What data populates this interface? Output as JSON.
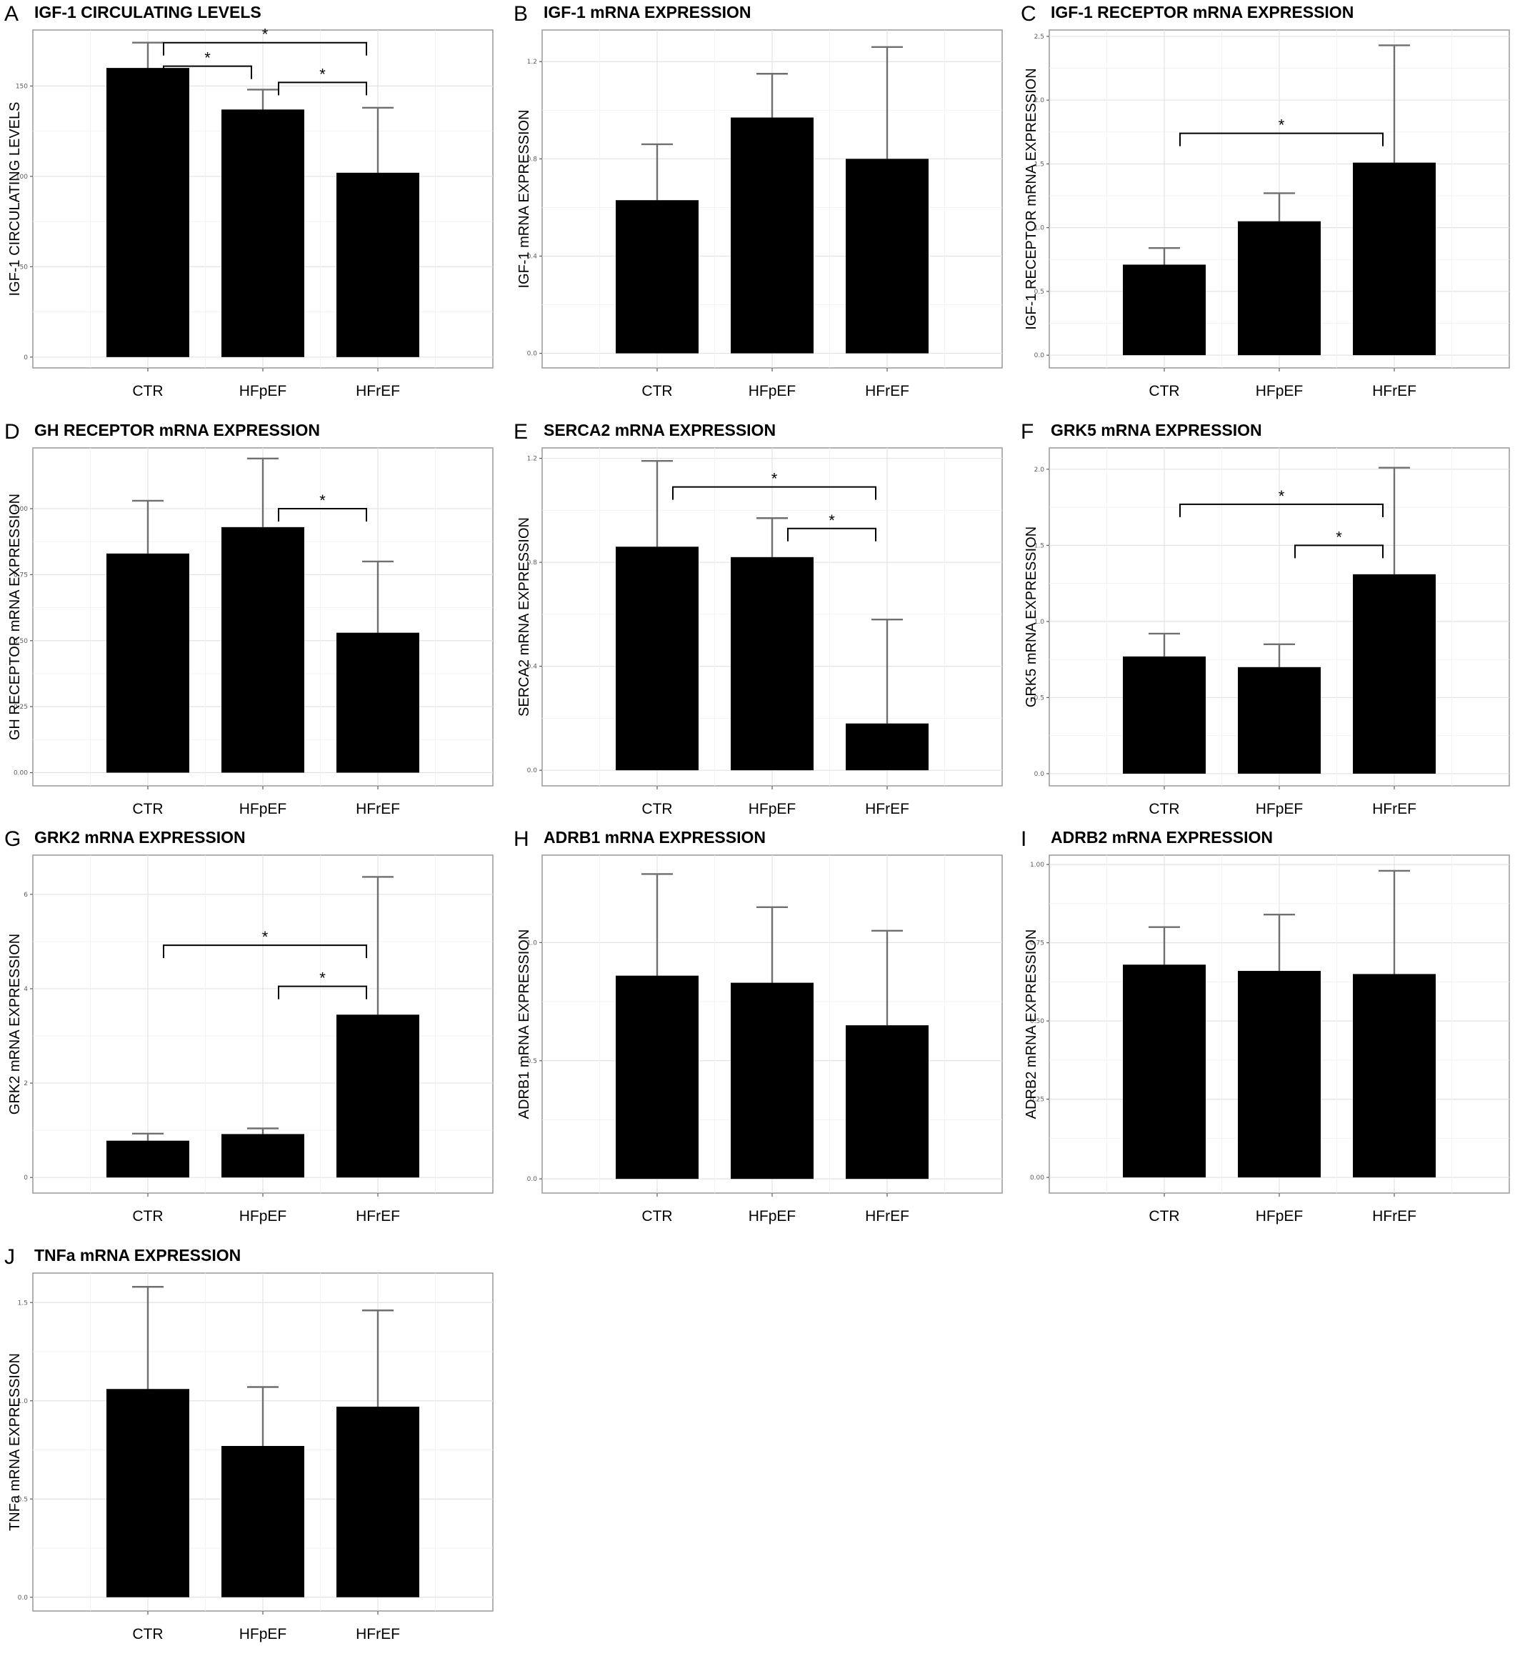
{
  "chart_data": [
    {
      "type": "bar",
      "panel": "A",
      "title": "IGF-1 CIRCULATING LEVELS",
      "ylabel": "IGF-1 CIRCULATING LEVELS",
      "categories": [
        "CTR",
        "HFpEF",
        "HFrEF"
      ],
      "values": [
        160,
        137,
        102
      ],
      "errors": [
        14,
        11,
        36
      ],
      "ylim": [
        -6,
        181
      ],
      "yticks": [
        0,
        50,
        100,
        150
      ],
      "significance": [
        {
          "from": 0,
          "to": 1,
          "level": 161,
          "label": "*"
        },
        {
          "from": 0,
          "to": 2,
          "level": 174,
          "label": "*"
        },
        {
          "from": 1,
          "to": 2,
          "level": 152,
          "label": "*"
        }
      ],
      "grid": true
    },
    {
      "type": "bar",
      "panel": "B",
      "title": "IGF-1 mRNA EXPRESSION",
      "ylabel": "IGF-1 mRNA EXPRESSION",
      "categories": [
        "CTR",
        "HFpEF",
        "HFrEF"
      ],
      "values": [
        0.63,
        0.97,
        0.8
      ],
      "errors": [
        0.23,
        0.18,
        0.46
      ],
      "ylim": [
        -0.06,
        1.33
      ],
      "yticks": [
        0.0,
        0.4,
        0.8,
        1.2
      ],
      "tick_format": 1,
      "significance": [],
      "grid": true
    },
    {
      "type": "bar",
      "panel": "C",
      "title": "IGF-1 RECEPTOR mRNA EXPRESSION",
      "ylabel": "IGF-1 RECEPTOR mRNA EXPRESSION",
      "categories": [
        "CTR",
        "HFpEF",
        "HFrEF"
      ],
      "values": [
        0.71,
        1.05,
        1.51
      ],
      "errors": [
        0.13,
        0.22,
        0.92
      ],
      "ylim": [
        -0.1,
        2.55
      ],
      "yticks": [
        0.0,
        0.5,
        1.0,
        1.5,
        2.0,
        2.5
      ],
      "tick_format": 1,
      "significance": [
        {
          "from": 0,
          "to": 2,
          "level": 1.74,
          "label": "*"
        }
      ],
      "grid": true
    },
    {
      "type": "bar",
      "panel": "D",
      "title": "GH RECEPTOR mRNA EXPRESSION",
      "ylabel": "GH RECEPTOR mRNA EXPRESSION",
      "categories": [
        "CTR",
        "HFpEF",
        "HFrEF"
      ],
      "values": [
        0.83,
        0.93,
        0.53
      ],
      "errors": [
        0.2,
        0.26,
        0.27
      ],
      "ylim": [
        -0.05,
        1.23
      ],
      "yticks": [
        0.0,
        0.25,
        0.5,
        0.75,
        1.0
      ],
      "tick_format": 2,
      "significance": [
        {
          "from": 1,
          "to": 2,
          "level": 1.0,
          "label": "*"
        }
      ],
      "grid": true
    },
    {
      "type": "bar",
      "panel": "E",
      "title": "SERCA2 mRNA EXPRESSION",
      "ylabel": "SERCA2 mRNA EXPRESSION",
      "categories": [
        "CTR",
        "HFpEF",
        "HFrEF"
      ],
      "values": [
        0.86,
        0.82,
        0.18
      ],
      "errors": [
        0.33,
        0.15,
        0.4
      ],
      "ylim": [
        -0.06,
        1.24
      ],
      "yticks": [
        0.0,
        0.4,
        0.8,
        1.2
      ],
      "tick_format": 1,
      "significance": [
        {
          "from": 0,
          "to": 2,
          "level": 1.09,
          "label": "*"
        },
        {
          "from": 1,
          "to": 2,
          "level": 0.93,
          "label": "*"
        }
      ],
      "grid": true
    },
    {
      "type": "bar",
      "panel": "F",
      "title": "GRK5 mRNA EXPRESSION",
      "ylabel": "GRK5 mRNA EXPRESSION",
      "categories": [
        "CTR",
        "HFpEF",
        "HFrEF"
      ],
      "values": [
        0.77,
        0.7,
        1.31
      ],
      "errors": [
        0.15,
        0.15,
        0.7
      ],
      "ylim": [
        -0.08,
        2.14
      ],
      "yticks": [
        0.0,
        0.5,
        1.0,
        1.5,
        2.0
      ],
      "tick_format": 1,
      "significance": [
        {
          "from": 0,
          "to": 2,
          "level": 1.77,
          "label": "*"
        },
        {
          "from": 1,
          "to": 2,
          "level": 1.5,
          "label": "*"
        }
      ],
      "grid": true
    },
    {
      "type": "bar",
      "panel": "G",
      "title": "GRK2 mRNA EXPRESSION",
      "ylabel": "GRK2 mRNA EXPRESSION",
      "categories": [
        "CTR",
        "HFpEF",
        "HFrEF"
      ],
      "values": [
        0.78,
        0.92,
        3.45
      ],
      "errors": [
        0.15,
        0.12,
        2.92
      ],
      "ylim": [
        -0.33,
        6.83
      ],
      "yticks": [
        0,
        2,
        4,
        6
      ],
      "tick_format": 0,
      "significance": [
        {
          "from": 0,
          "to": 2,
          "level": 4.92,
          "label": "*"
        },
        {
          "from": 1,
          "to": 2,
          "level": 4.05,
          "label": "*"
        }
      ],
      "grid": true
    },
    {
      "type": "bar",
      "panel": "H",
      "title": "ADRB1 mRNA EXPRESSION",
      "ylabel": "ADRB1 mRNA EXPRESSION",
      "categories": [
        "CTR",
        "HFpEF",
        "HFrEF"
      ],
      "values": [
        0.86,
        0.83,
        0.65
      ],
      "errors": [
        0.43,
        0.32,
        0.4
      ],
      "ylim": [
        -0.06,
        1.37
      ],
      "yticks": [
        0.0,
        0.5,
        1.0
      ],
      "tick_format": 1,
      "significance": [],
      "grid": true
    },
    {
      "type": "bar",
      "panel": "I",
      "title": "ADRB2 mRNA EXPRESSION",
      "ylabel": "ADRB2 mRNA EXPRESSION",
      "categories": [
        "CTR",
        "HFpEF",
        "HFrEF"
      ],
      "values": [
        0.68,
        0.66,
        0.65
      ],
      "errors": [
        0.12,
        0.18,
        0.33
      ],
      "ylim": [
        -0.05,
        1.03
      ],
      "yticks": [
        0.0,
        0.25,
        0.5,
        0.75,
        1.0
      ],
      "tick_format": 2,
      "significance": [],
      "grid": true
    },
    {
      "type": "bar",
      "panel": "J",
      "title": "TNFa mRNA EXPRESSION",
      "ylabel": "TNFa mRNA EXPRESSION",
      "categories": [
        "CTR",
        "HFpEF",
        "HFrEF"
      ],
      "values": [
        1.06,
        0.77,
        0.97
      ],
      "errors": [
        0.52,
        0.3,
        0.49
      ],
      "ylim": [
        -0.07,
        1.65
      ],
      "yticks": [
        0.0,
        0.5,
        1.0,
        1.5
      ],
      "tick_format": 1,
      "significance": [],
      "grid": true
    }
  ]
}
